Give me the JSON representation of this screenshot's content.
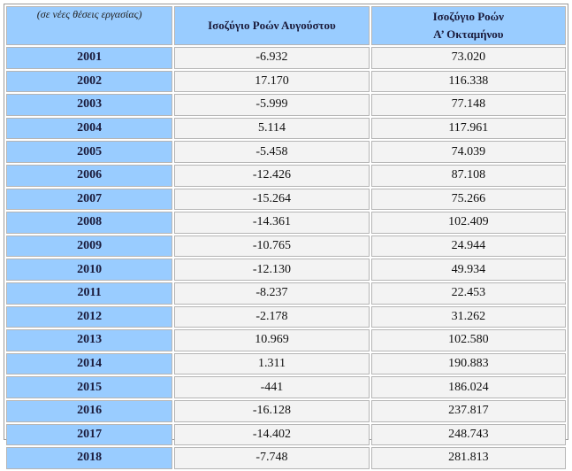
{
  "table": {
    "header": [
      "(σε νέες θέσεις εργασίας)",
      "Ισοζύγιο Ροών Αυγούστου",
      [
        "Ισοζύγιο Ροών",
        "Α’ Οκταμήνου"
      ]
    ],
    "rows": [
      [
        "2001",
        "-6.932",
        "73.020"
      ],
      [
        "2002",
        "17.170",
        "116.338"
      ],
      [
        "2003",
        "-5.999",
        "77.148"
      ],
      [
        "2004",
        "5.114",
        "117.961"
      ],
      [
        "2005",
        "-5.458",
        "74.039"
      ],
      [
        "2006",
        "-12.426",
        "87.108"
      ],
      [
        "2007",
        "-15.264",
        "75.266"
      ],
      [
        "2008",
        "-14.361",
        "102.409"
      ],
      [
        "2009",
        "-10.765",
        "24.944"
      ],
      [
        "2010",
        "-12.130",
        "49.934"
      ],
      [
        "2011",
        "-8.237",
        "22.453"
      ],
      [
        "2012",
        "-2.178",
        "31.262"
      ],
      [
        "2013",
        "10.969",
        "102.580"
      ],
      [
        "2014",
        "1.311",
        "190.883"
      ],
      [
        "2015",
        "-441",
        "186.024"
      ],
      [
        "2016",
        "-16.128",
        "237.817"
      ],
      [
        "2017",
        "-14.402",
        "248.743"
      ],
      [
        "2018",
        "-7.748",
        "281.813"
      ]
    ]
  }
}
